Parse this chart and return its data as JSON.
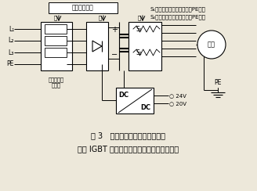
{
  "bg_color": "#ede8da",
  "line_color": "#000000",
  "title_line1": "图 3   产生较高直流电压的原因：",
  "title_line2": "快速 IGBT 以高频周期性地将正负极与地相连",
  "top_label": "共模高频噪声",
  "left_labels": [
    "小",
    "大",
    "大"
  ],
  "line_labels": [
    "L₁",
    "L₂",
    "L₃",
    "PE"
  ],
  "bottom_left": "变频器自带\n滤波器",
  "s1_text": "S₁闭合：电解电容的正极与PE相连",
  "s2_text": "S₂闭合：电解电容的负极与PE相连",
  "s1_label": "S₁",
  "s2_label": "S₂",
  "v24_label": "○ 24V",
  "v20_label": "○ 20V",
  "pe_label": "PE",
  "motor_label": "电机"
}
